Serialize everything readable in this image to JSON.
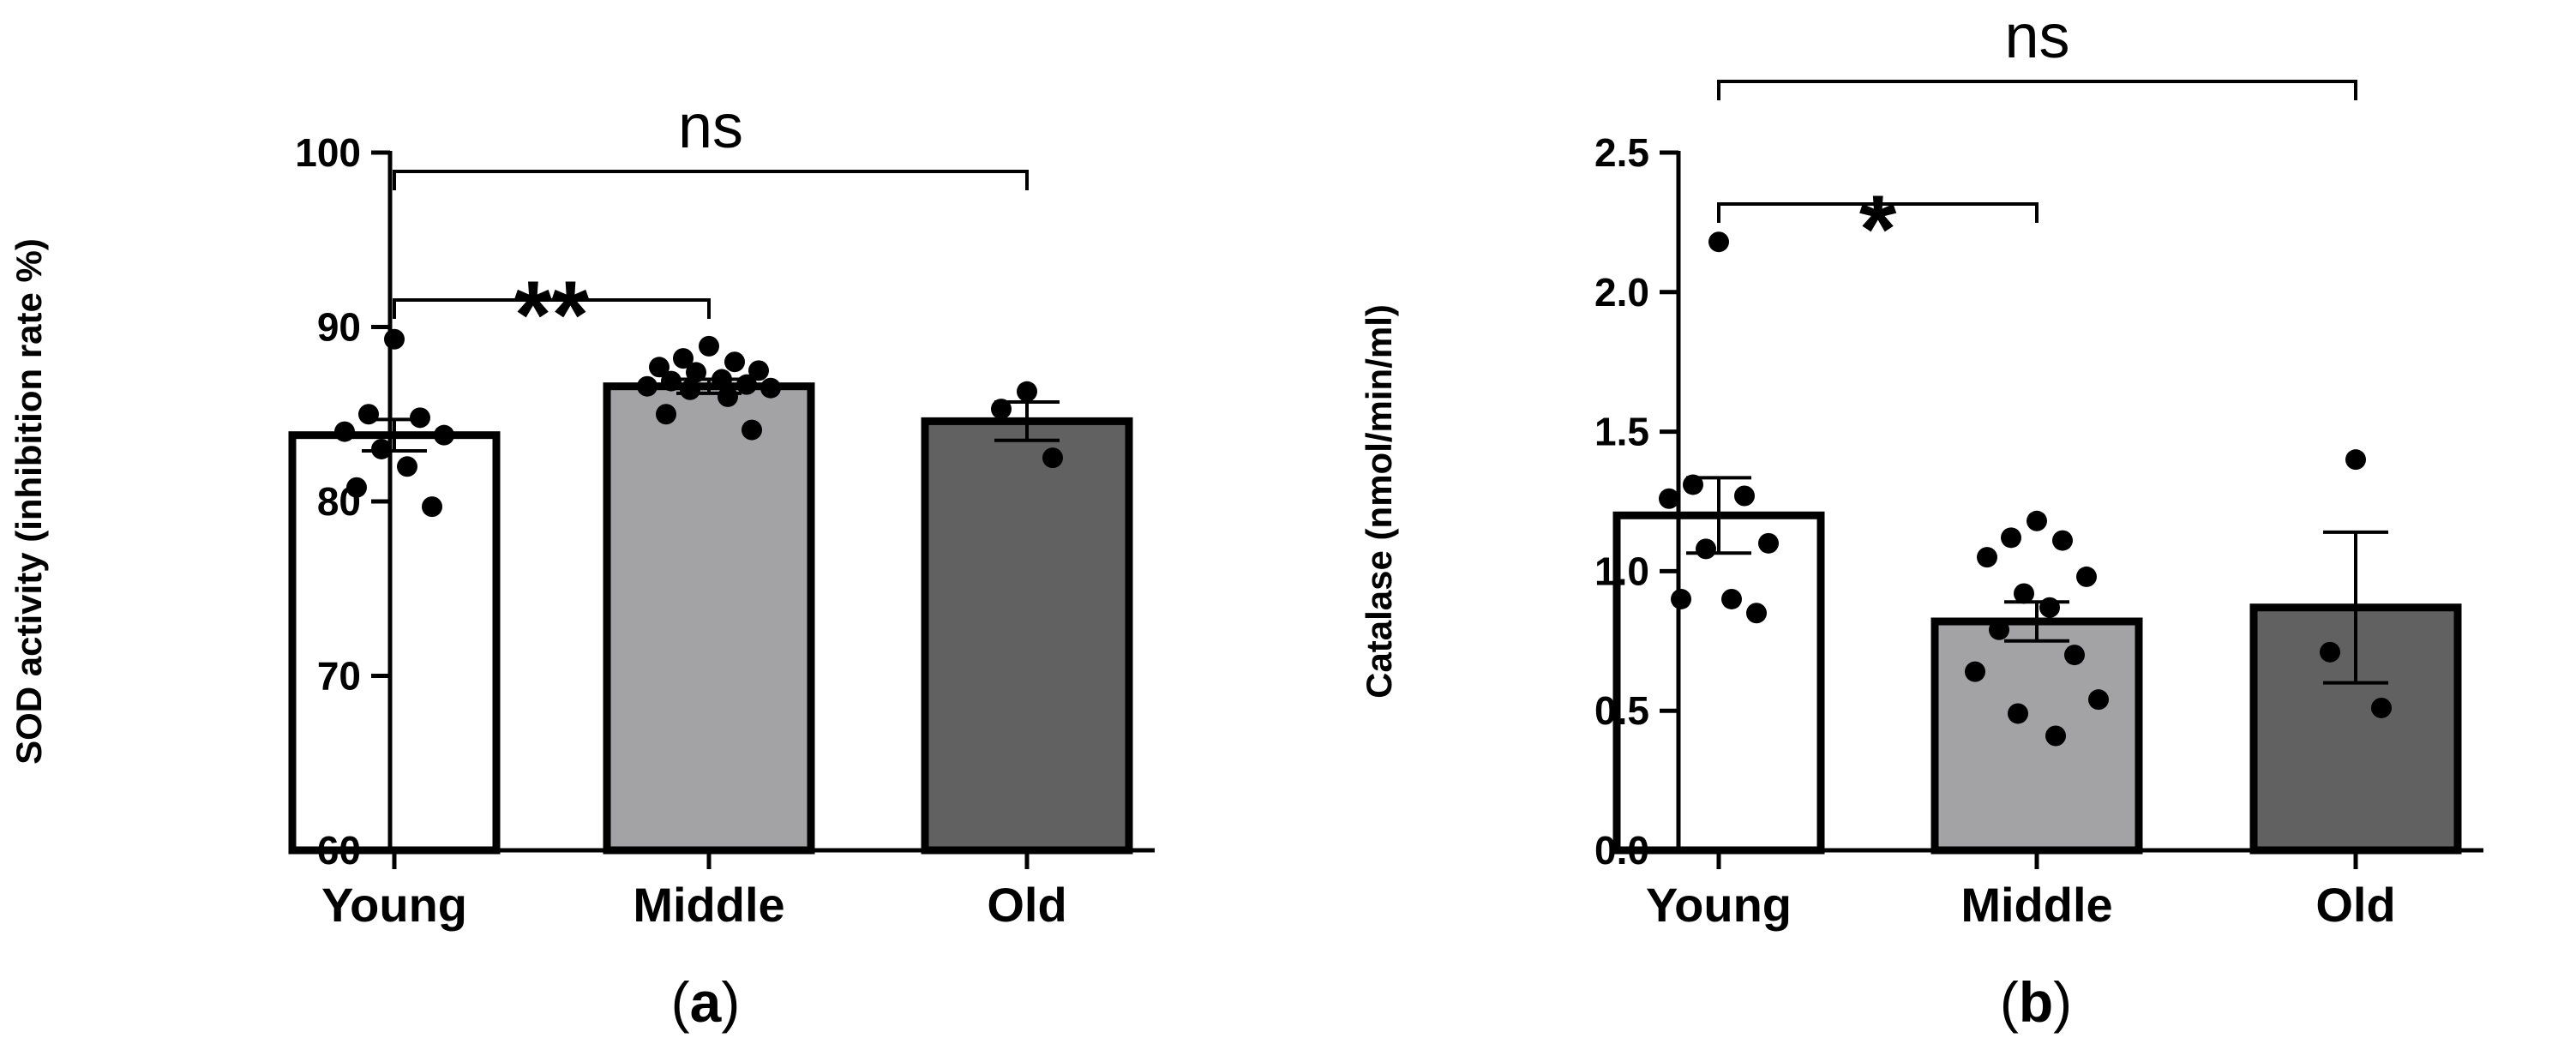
{
  "chart_data": [
    {
      "panel_label": "a",
      "type": "bar",
      "title": "",
      "xlabel": "",
      "ylabel": "SOD activity (inhibition rate %)",
      "ylim": [
        60,
        100
      ],
      "yticks": [
        "60",
        "70",
        "80",
        "90",
        "100"
      ],
      "categories": [
        "Young",
        "Middle",
        "Old"
      ],
      "bar_colors": [
        "#ffffff",
        "#a3a3a6",
        "#616161"
      ],
      "values": [
        83.8,
        86.6,
        84.6
      ],
      "sem": [
        0.9,
        0.4,
        1.1
      ],
      "points": [
        [
          89.3,
          85.0,
          84.8,
          84.0,
          83.8,
          83.0,
          82.0,
          80.8,
          79.7
        ],
        [
          88.9,
          88.2,
          88.0,
          87.7,
          87.5,
          87.4,
          87.0,
          86.9,
          86.7,
          86.6,
          86.5,
          86.4,
          86.0,
          85.0,
          84.1
        ],
        [
          86.3,
          85.3,
          82.5
        ]
      ],
      "comparisons": [
        {
          "from": "Young",
          "to": "Middle",
          "label": "**"
        },
        {
          "from": "Young",
          "to": "Old",
          "label": "ns"
        }
      ]
    },
    {
      "panel_label": "b",
      "type": "bar",
      "title": "",
      "xlabel": "",
      "ylabel": "Catalase (nmol/min/ml)",
      "ylim": [
        0,
        2.5
      ],
      "yticks": [
        "0.0",
        "0.5",
        "1.0",
        "1.5",
        "2.0",
        "2.5"
      ],
      "categories": [
        "Young",
        "Middle",
        "Old"
      ],
      "bar_colors": [
        "#ffffff",
        "#a3a3a6",
        "#616161"
      ],
      "values": [
        1.2,
        0.82,
        0.87
      ],
      "sem": [
        0.135,
        0.07,
        0.27
      ],
      "points": [
        [
          2.18,
          1.31,
          1.27,
          1.26,
          1.1,
          1.08,
          0.9,
          0.9,
          0.85
        ],
        [
          1.18,
          1.12,
          1.11,
          1.05,
          0.98,
          0.92,
          0.87,
          0.79,
          0.7,
          0.64,
          0.54,
          0.49,
          0.41
        ],
        [
          1.4,
          0.71,
          0.51
        ]
      ],
      "comparisons": [
        {
          "from": "Young",
          "to": "Middle",
          "label": "*"
        },
        {
          "from": "Young",
          "to": "Old",
          "label": "ns"
        }
      ]
    }
  ]
}
